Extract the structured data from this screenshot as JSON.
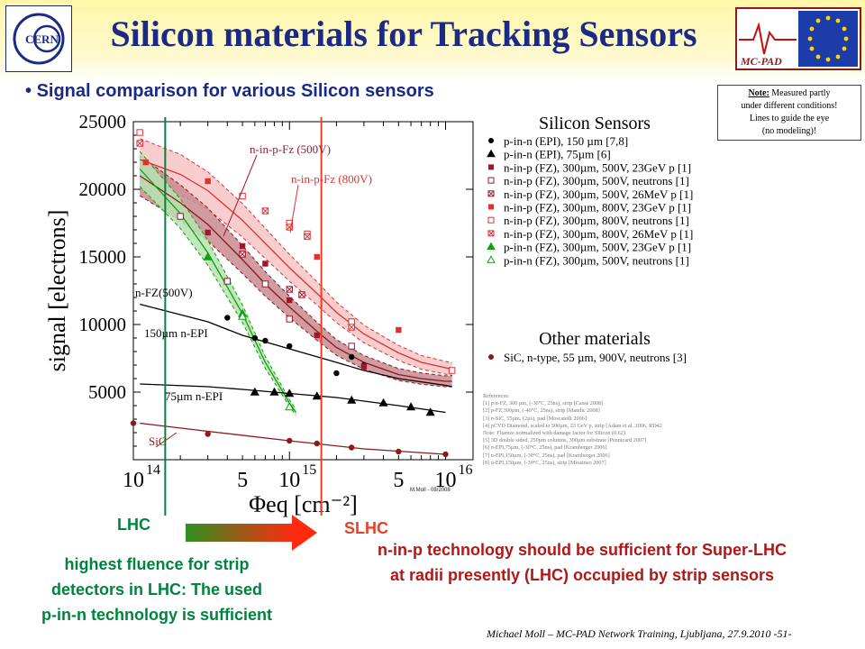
{
  "header": {
    "title": "Silicon materials for Tracking Sensors",
    "cern_logo_text": "CERN",
    "mcpad_logo_text": "MC-PAD",
    "subtitle": "Signal comparison for various Silicon sensors",
    "note_heading": "Note:",
    "note_lines": [
      "Measured partly",
      "under different conditions!",
      "Lines to guide the eye",
      "(no modeling)!"
    ]
  },
  "colors": {
    "title_blue": "#1a2a86",
    "lhc_green": "#00843d",
    "slhc_red": "#e8402a",
    "text_red": "#b01818"
  },
  "chart_data": {
    "type": "scatter",
    "xscale": "log",
    "xlim": [
      100000000000000.0,
      1.5e+16
    ],
    "ylim": [
      0,
      25000
    ],
    "ylabel": "signal [electrons]",
    "xlabel": "Φeq [cm⁻²]",
    "yticks": [
      "5000",
      "10000",
      "15000",
      "20000",
      "25000"
    ],
    "yticks_values": [
      5000,
      10000,
      15000,
      20000,
      25000
    ],
    "xtick_labels": [
      {
        "x": 100000000000000.0,
        "base": "10",
        "exp": "14"
      },
      {
        "x": 500000000000000.0,
        "base": "5",
        "exp": ""
      },
      {
        "x": 1000000000000000.0,
        "base": "10",
        "exp": "15"
      },
      {
        "x": 5000000000000000.0,
        "base": "5",
        "exp": ""
      },
      {
        "x": 1e+16,
        "base": "10",
        "exp": "16"
      }
    ],
    "credit": "M.Moll - 08/2008",
    "legend_title": "Silicon Sensors",
    "legend_title_2": "Other materials",
    "series": [
      {
        "name": "p-in-n (EPI), 150 µm [7,8]",
        "marker": "circle-filled",
        "color": "#000000",
        "x": [
          400000000000000.0,
          600000000000000.0,
          700000000000000.0,
          1000000000000000.0,
          2000000000000000.0,
          2500000000000000.0,
          3000000000000000.0
        ],
        "y": [
          10500,
          9000,
          8800,
          8400,
          6400,
          7600,
          7000
        ]
      },
      {
        "name": "p-in-n (EPI), 75µm [6]",
        "marker": "triangle-filled",
        "color": "#000000",
        "x": [
          600000000000000.0,
          800000000000000.0,
          1000000000000000.0,
          1500000000000000.0,
          2500000000000000.0,
          4000000000000000.0,
          6000000000000000.0,
          8000000000000000.0
        ],
        "y": [
          5000,
          5000,
          4900,
          4700,
          4400,
          4200,
          3900,
          3500
        ]
      },
      {
        "name": "n-in-p (FZ), 300µm, 500V, 23GeV p [1]",
        "marker": "square-filled",
        "color": "#a0162a",
        "x": [
          300000000000000.0,
          500000000000000.0,
          700000000000000.0,
          1000000000000000.0,
          1500000000000000.0,
          3000000000000000.0
        ],
        "y": [
          16800,
          15800,
          14500,
          11800,
          9200,
          6900
        ]
      },
      {
        "name": "n-in-p (FZ), 300µm, 500V, neutrons [1]",
        "marker": "square-open",
        "color": "#a0162a",
        "x": [
          200000000000000.0,
          400000000000000.0,
          700000000000000.0,
          1000000000000000.0,
          2500000000000000.0
        ],
        "y": [
          18000,
          13200,
          13000,
          10400,
          8400
        ]
      },
      {
        "name": "n-in-p (FZ), 300µm, 500V, 26MeV p [1]",
        "marker": "square-x",
        "color": "#a0162a",
        "x": [
          500000000000000.0,
          1000000000000000.0,
          1200000000000000.0
        ],
        "y": [
          15200,
          12600,
          12200
        ]
      },
      {
        "name": "n-in-p (FZ), 300µm, 800V, 23GeV p [1]",
        "marker": "square-filled",
        "color": "#e23030",
        "x": [
          120000000000000.0,
          300000000000000.0,
          1500000000000000.0,
          5000000000000000.0
        ],
        "y": [
          22000,
          20600,
          15000,
          9600
        ]
      },
      {
        "name": "n-in-p (FZ), 300µm, 800V, neutrons [1]",
        "marker": "square-open",
        "color": "#e23030",
        "x": [
          110000000000000.0,
          500000000000000.0,
          1000000000000000.0,
          1300000000000000.0,
          2500000000000000.0,
          1.1e+16
        ],
        "y": [
          24200,
          19500,
          17500,
          16700,
          10200,
          6600
        ]
      },
      {
        "name": "n-in-p (FZ), 300µm, 800V, 26MeV p [1]",
        "marker": "square-x",
        "color": "#e23030",
        "x": [
          110000000000000.0,
          700000000000000.0,
          1000000000000000.0,
          1300000000000000.0,
          2500000000000000.0
        ],
        "y": [
          23400,
          18400,
          17200,
          16500,
          9800
        ]
      },
      {
        "name": "p-in-n (FZ), 300µm, 500V, 23GeV p [1]",
        "marker": "triangle-filled",
        "color": "#10a010",
        "x": [
          300000000000000.0,
          500000000000000.0
        ],
        "y": [
          15000,
          10800
        ]
      },
      {
        "name": "p-in-n (FZ), 300µm, 500V, neutrons [1]",
        "marker": "triangle-open",
        "color": "#10a010",
        "x": [
          500000000000000.0,
          1000000000000000.0
        ],
        "y": [
          10600,
          3900
        ]
      },
      {
        "name": "SiC, n-type, 55 µm, 900V, neutrons [3]",
        "marker": "circle-filled",
        "color": "#8b1a1a",
        "x": [
          100000000000000.0,
          300000000000000.0,
          1000000000000000.0,
          1500000000000000.0,
          2500000000000000.0,
          5000000000000000.0,
          1e+16
        ],
        "y": [
          2700,
          1900,
          1400,
          1200,
          900,
          600,
          400
        ]
      }
    ],
    "curves": [
      {
        "name": "red",
        "x": [
          110000000000000.0,
          200000000000000.0,
          300000000000000.0,
          500000000000000.0,
          700000000000000.0,
          1000000000000000.0,
          1500000000000000.0,
          2000000000000000.0,
          3000000000000000.0,
          5000000000000000.0,
          7000000000000000.0,
          1e+16,
          1.1e+16
        ],
        "y": [
          22200,
          21100,
          19900,
          17700,
          16000,
          14200,
          12300,
          10900,
          9300,
          7900,
          7200,
          6800,
          6700
        ]
      },
      {
        "name": "dark-red",
        "x": [
          110000000000000.0,
          200000000000000.0,
          300000000000000.0,
          500000000000000.0,
          700000000000000.0,
          1000000000000000.0,
          1500000000000000.0,
          2000000000000000.0,
          3000000000000000.0,
          5000000000000000.0,
          7000000000000000.0,
          1e+16,
          1.1e+16
        ],
        "y": [
          21000,
          19000,
          17400,
          14800,
          13000,
          11300,
          9500,
          8300,
          7200,
          6300,
          6000,
          5800,
          5800
        ]
      },
      {
        "name": "green",
        "x": [
          110000000000000.0,
          200000000000000.0,
          300000000000000.0,
          500000000000000.0,
          700000000000000.0,
          1000000000000000.0,
          1100000000000000.0
        ],
        "y": [
          21500,
          18200,
          15300,
          10800,
          7200,
          4200,
          3500
        ]
      },
      {
        "name": "black-150",
        "x": [
          110000000000000.0,
          300000000000000.0,
          500000000000000.0,
          1000000000000000.0,
          2000000000000000.0,
          3000000000000000.0,
          5000000000000000.0,
          1e+16,
          1.1e+16
        ],
        "y": [
          11500,
          10200,
          9200,
          8200,
          7200,
          6600,
          6000,
          5500,
          5400
        ]
      },
      {
        "name": "black-75",
        "x": [
          110000000000000.0,
          300000000000000.0,
          500000000000000.0,
          1000000000000000.0,
          2000000000000000.0,
          5000000000000000.0,
          1e+16
        ],
        "y": [
          5600,
          5400,
          5200,
          4900,
          4600,
          4000,
          3500
        ]
      },
      {
        "name": "sic",
        "x": [
          110000000000000.0,
          300000000000000.0,
          1000000000000000.0,
          3000000000000000.0,
          1e+16
        ],
        "y": [
          2700,
          2100,
          1400,
          800,
          400
        ]
      }
    ],
    "annotations": [
      {
        "text": "n-in-p-Fz (500V)",
        "color": "#a0162a"
      },
      {
        "text": "n-in-p-Fz (800V)",
        "color": "#e23030"
      },
      {
        "text": "n-FZ(500V)",
        "color": "#000000"
      },
      {
        "text": "150µm n-EPI",
        "color": "#000000"
      },
      {
        "text": "75µm n-EPI",
        "color": "#000000"
      },
      {
        "text": "SiC",
        "color": "#8b1a1a"
      }
    ],
    "vlines": [
      {
        "name": "LHC",
        "x": 160000000000000.0,
        "color": "#00843d"
      },
      {
        "name": "SLHC",
        "x": 1600000000000000.0,
        "color": "#e8402a"
      }
    ]
  },
  "references": {
    "heading": "References:",
    "lines": [
      "[1] p/n-FZ, 300 µm, (-30°C, 25ns), strip [Casse 2008]",
      "[2] p-FZ,300µm, (-40°C, 25ns), strip [Mandic 2008]",
      "[3] n-SiC, 55µm, (2µs), pad [Moscatelli 2006]",
      "[4] pCVD Diamond, scaled to 500µm, 23 GeV p, strip [Adam et al. 2006, RD42]",
      "    Note: Fluenze normalized with damage factor for Silicon (0.62)",
      "[5] 3D double sided, 250µm columns, 300µm substrate [Pennicard 2007]",
      "[6] n-EPI,75µm, (-30°C, 25ns), pad [Kramberger 2006]",
      "[7] n-EPI,150µm, (-30°C, 25ns), pad [Kramberger 2006]",
      "[8] n-EPI,150µm, (-30°C, 25ns), strip [Messineo 2007]"
    ]
  },
  "lhc": {
    "label": "LHC",
    "text_lines": [
      "highest fluence for strip",
      "detectors in LHC: The used",
      "p-in-n technology is sufficient"
    ]
  },
  "slhc": {
    "label": "SLHC",
    "text_lines": [
      "n-in-p technology should be sufficient for Super-LHC",
      "at radii presently (LHC) occupied by strip sensors"
    ]
  },
  "footer": {
    "text": "Michael Moll – MC-PAD Network Training, Ljubljana, 27.9.2010",
    "page": "-51-"
  }
}
